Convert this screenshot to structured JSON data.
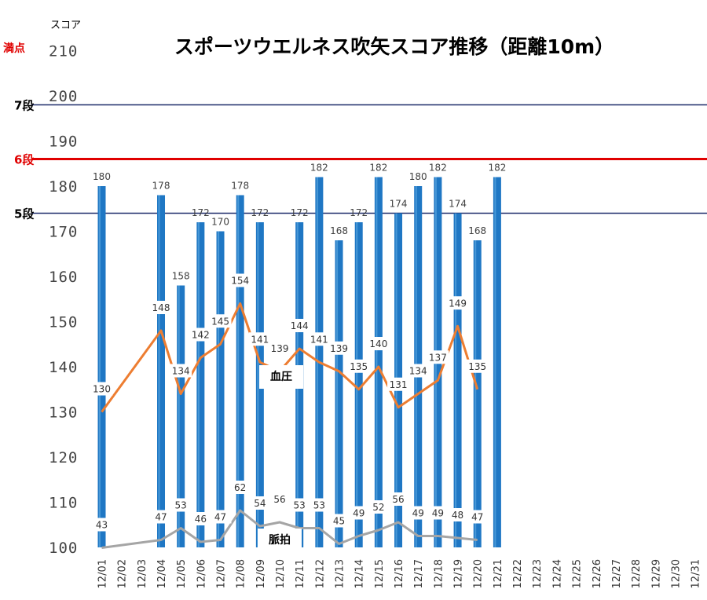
{
  "chart_data": {
    "type": "bar",
    "title": "スポーツウエルネス吹矢スコア推移（距離10m）",
    "ylabel": "スコア",
    "full_score_label": "満点",
    "ylim": [
      100,
      210
    ],
    "yticks": [
      100,
      110,
      120,
      130,
      140,
      150,
      160,
      170,
      180,
      190,
      200,
      210
    ],
    "ytick_labels": [
      "100",
      "110",
      "120",
      "130",
      "140",
      "150",
      "160",
      "170",
      "180",
      "190",
      "200",
      "210"
    ],
    "categories": [
      "12/01",
      "12/02",
      "12/03",
      "12/04",
      "12/05",
      "12/06",
      "12/07",
      "12/08",
      "12/09",
      "12/10",
      "12/11",
      "12/12",
      "12/13",
      "12/14",
      "12/15",
      "12/16",
      "12/17",
      "12/18",
      "12/19",
      "12/20",
      "12/21",
      "12/22",
      "12/23",
      "12/24",
      "12/25",
      "12/26",
      "12/27",
      "12/28",
      "12/29",
      "12/30",
      "12/31"
    ],
    "series": [
      {
        "kind": "bar",
        "values": [
          180,
          null,
          null,
          178,
          158,
          172,
          170,
          178,
          172,
          null,
          172,
          182,
          168,
          172,
          182,
          174,
          180,
          182,
          174,
          168,
          182,
          null,
          null,
          null,
          null,
          null,
          null,
          null,
          null,
          null,
          null
        ],
        "labels": [
          "180",
          "",
          "",
          "178",
          "158",
          "172",
          "170",
          "178",
          "172",
          "",
          "172",
          "182",
          "168",
          "172",
          "182",
          "174",
          "180",
          "182",
          "174",
          "168",
          "182",
          "",
          "",
          "",
          "",
          "",
          "",
          "",
          "",
          "",
          ""
        ],
        "color": "#1f77c4"
      },
      {
        "kind": "line",
        "name": "血圧",
        "values": [
          130,
          null,
          null,
          148,
          134,
          142,
          145,
          154,
          141,
          139,
          144,
          141,
          139,
          135,
          140,
          131,
          134,
          137,
          149,
          135,
          null,
          null,
          null,
          null,
          null,
          null,
          null,
          null,
          null,
          null,
          null
        ],
        "labels": [
          "130",
          "",
          "",
          "148",
          "134",
          "142",
          "145",
          "154",
          "141",
          "139",
          "144",
          "141",
          "139",
          "135",
          "140",
          "131",
          "134",
          "137",
          "149",
          "135",
          "",
          "",
          "",
          "",
          "",
          "",
          "",
          "",
          "",
          "",
          ""
        ],
        "color": "#ed7d31"
      },
      {
        "kind": "line",
        "name": "脈拍",
        "values": [
          43,
          null,
          null,
          47,
          53,
          46,
          47,
          62,
          54,
          56,
          53,
          53,
          45,
          49,
          52,
          56,
          49,
          49,
          48,
          47,
          null,
          null,
          null,
          null,
          null,
          null,
          null,
          null,
          null,
          null,
          null
        ],
        "labels": [
          "43",
          "",
          "",
          "47",
          "53",
          "46",
          "47",
          "62",
          "54",
          "56",
          "53",
          "53",
          "45",
          "49",
          "52",
          "56",
          "49",
          "49",
          "48",
          "47",
          "",
          "",
          "",
          "",
          "",
          "",
          "",
          "",
          "",
          "",
          ""
        ],
        "color": "#a5a5a5"
      }
    ],
    "reference_lines": [
      {
        "label": "7段",
        "value": 198,
        "color": "#1f2d6b"
      },
      {
        "label": "6段",
        "value": 186,
        "color": "#e00000"
      },
      {
        "label": "5段",
        "value": 174,
        "color": "#1f2d6b"
      }
    ],
    "grid": false,
    "legend": "none"
  }
}
